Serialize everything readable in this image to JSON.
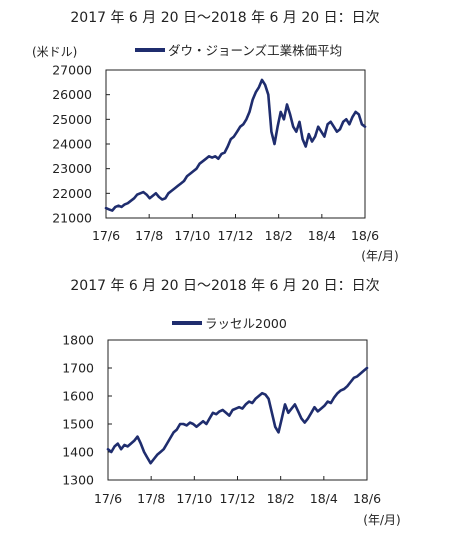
{
  "chart_data": [
    {
      "type": "line",
      "title": "2017 年 6 月 20 日〜2018 年 6 月 20 日：日次",
      "y_unit_label": "(米ドル)",
      "x_unit_label": "(年/月)",
      "legend_position": "top",
      "grid": false,
      "series_color": "#1f2d6e",
      "x_tick_labels": [
        "17/6",
        "17/8",
        "17/10",
        "17/12",
        "18/2",
        "18/4",
        "18/6"
      ],
      "y_tick_labels": [
        "27000",
        "26000",
        "25000",
        "24000",
        "23000",
        "22000",
        "21000"
      ],
      "y_ticks": [
        27000,
        26000,
        25000,
        24000,
        23000,
        22000,
        21000
      ],
      "ylim": [
        21000,
        27000
      ],
      "series": [
        {
          "name": "ダウ・ジョーンズ工業株価平均",
          "values": [
            21400,
            21350,
            21300,
            21450,
            21500,
            21450,
            21550,
            21600,
            21700,
            21800,
            21950,
            22000,
            22050,
            21950,
            21800,
            21900,
            22000,
            21850,
            21750,
            21800,
            22000,
            22100,
            22200,
            22300,
            22400,
            22500,
            22700,
            22800,
            22900,
            23000,
            23200,
            23300,
            23400,
            23500,
            23450,
            23500,
            23400,
            23600,
            23650,
            23900,
            24200,
            24300,
            24500,
            24700,
            24800,
            25000,
            25300,
            25800,
            26100,
            26300,
            26600,
            26400,
            26000,
            24500,
            24000,
            24700,
            25300,
            25000,
            25600,
            25200,
            24700,
            24500,
            24900,
            24200,
            23900,
            24400,
            24100,
            24300,
            24700,
            24500,
            24300,
            24800,
            24900,
            24700,
            24500,
            24600,
            24900,
            25000,
            24800,
            25100,
            25300,
            25200,
            24800,
            24700
          ]
        }
      ]
    },
    {
      "type": "line",
      "title": "2017 年 6 月 20 日〜2018 年 6 月 20 日：日次",
      "x_unit_label": "(年/月)",
      "legend_position": "top",
      "grid": false,
      "series_color": "#1f2d6e",
      "x_tick_labels": [
        "17/6",
        "17/8",
        "17/10",
        "17/12",
        "18/2",
        "18/4",
        "18/6"
      ],
      "y_tick_labels": [
        "1800",
        "1700",
        "1600",
        "1500",
        "1400",
        "1300"
      ],
      "y_ticks": [
        1800,
        1700,
        1600,
        1500,
        1400,
        1300
      ],
      "ylim": [
        1300,
        1800
      ],
      "series": [
        {
          "name": "ラッセル2000",
          "values": [
            1410,
            1400,
            1420,
            1430,
            1410,
            1425,
            1420,
            1430,
            1440,
            1455,
            1430,
            1400,
            1380,
            1360,
            1375,
            1390,
            1400,
            1410,
            1430,
            1450,
            1470,
            1480,
            1500,
            1500,
            1495,
            1505,
            1500,
            1490,
            1500,
            1510,
            1500,
            1520,
            1540,
            1535,
            1545,
            1550,
            1540,
            1530,
            1550,
            1555,
            1560,
            1555,
            1570,
            1580,
            1575,
            1590,
            1600,
            1610,
            1605,
            1590,
            1540,
            1490,
            1470,
            1520,
            1570,
            1540,
            1555,
            1570,
            1545,
            1520,
            1505,
            1520,
            1540,
            1560,
            1545,
            1555,
            1565,
            1580,
            1575,
            1595,
            1610,
            1620,
            1625,
            1635,
            1650,
            1665,
            1670,
            1680,
            1690,
            1700
          ]
        }
      ]
    }
  ]
}
